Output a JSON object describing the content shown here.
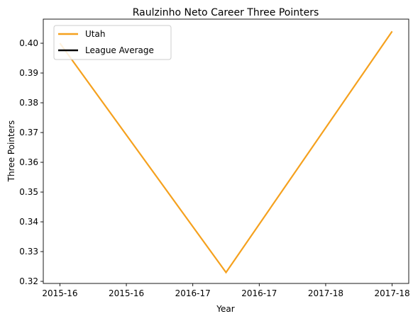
{
  "chart_data": {
    "type": "line",
    "title": "Raulzinho Neto Career Three Pointers",
    "xlabel": "Year",
    "ylabel": "Three Pointers",
    "x_ticks": [
      "2015-16",
      "2015-16",
      "2016-17",
      "2016-17",
      "2017-18",
      "2017-18"
    ],
    "x_tick_values": [
      0.0,
      0.4,
      0.8,
      1.2,
      1.6,
      2.0
    ],
    "xlim": [
      -0.1,
      2.1
    ],
    "y_ticks": [
      "0.32",
      "0.33",
      "0.34",
      "0.35",
      "0.36",
      "0.37",
      "0.38",
      "0.39",
      "0.40"
    ],
    "y_tick_values": [
      0.32,
      0.33,
      0.34,
      0.35,
      0.36,
      0.37,
      0.38,
      0.39,
      0.4
    ],
    "ylim": [
      0.3193,
      0.4081
    ],
    "grid": false,
    "legend_position": "upper-left",
    "series": [
      {
        "name": "Utah",
        "color": "#f5a11e",
        "x": [
          0,
          1,
          2
        ],
        "y": [
          0.4,
          0.323,
          0.404
        ]
      },
      {
        "name": "League Average",
        "color": "#000000",
        "x": [],
        "y": []
      }
    ]
  }
}
